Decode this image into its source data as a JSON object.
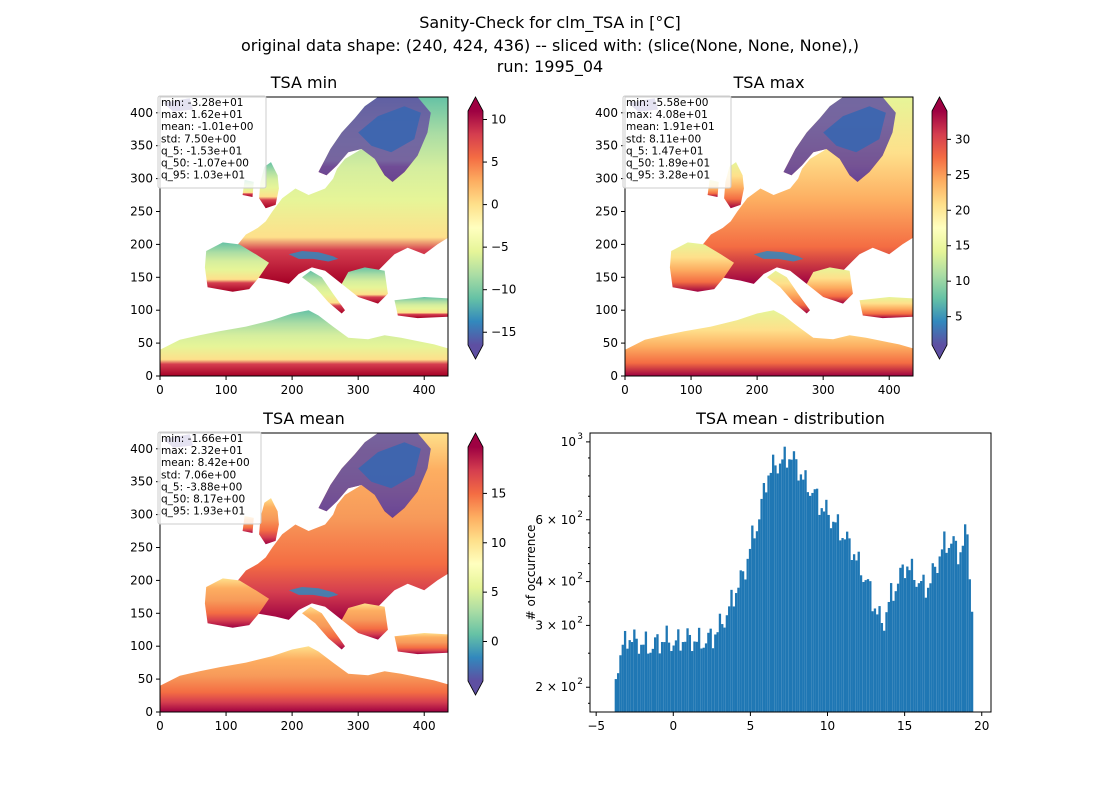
{
  "figure": {
    "title_line1": "Sanity-Check for clm_TSA in [°C]",
    "title_line2": "original data shape: (240, 424, 436) -- sliced with: (slice(None, None, None),)",
    "title_line3": "run: 1995_04"
  },
  "colors": {
    "hist_bar": "#1f77b4",
    "ocean": "#ffffff"
  },
  "chart_data": [
    {
      "type": "heatmap",
      "title": "TSA min",
      "colormap": "Spectral_r",
      "xlim": [
        0,
        436
      ],
      "ylim": [
        0,
        424
      ],
      "xticks": [
        0,
        100,
        200,
        300,
        400
      ],
      "yticks": [
        0,
        50,
        100,
        150,
        200,
        250,
        300,
        350,
        400
      ],
      "colorbar": {
        "range": [
          -16.5,
          11
        ],
        "ticks": [
          10,
          5,
          0,
          -5,
          -10,
          -15
        ],
        "tick_labels": [
          "10",
          "5",
          "0",
          "−5",
          "−10",
          "−15"
        ]
      },
      "stats": [
        "min: -3.28e+01",
        "max: 1.62e+01",
        "mean: -1.01e+00",
        "std: 7.50e+00",
        "q_5: -1.53e+01",
        "q_50: -1.07e+00",
        "q_95: 1.03e+01"
      ]
    },
    {
      "type": "heatmap",
      "title": "TSA max",
      "colormap": "Spectral_r",
      "xlim": [
        0,
        436
      ],
      "ylim": [
        0,
        424
      ],
      "xticks": [
        0,
        100,
        200,
        300,
        400
      ],
      "yticks": [
        0,
        50,
        100,
        150,
        200,
        250,
        300,
        350,
        400
      ],
      "colorbar": {
        "range": [
          1,
          34
        ],
        "ticks": [
          30,
          25,
          20,
          15,
          10,
          5
        ],
        "tick_labels": [
          "30",
          "25",
          "20",
          "15",
          "10",
          "5"
        ]
      },
      "stats": [
        "min: -5.58e+00",
        "max: 4.08e+01",
        "mean: 1.91e+01",
        "std: 8.11e+00",
        "q_5: 1.47e+01",
        "q_50: 1.89e+01",
        "q_95: 3.28e+01"
      ]
    },
    {
      "type": "heatmap",
      "title": "TSA mean",
      "colormap": "Spectral_r",
      "xlim": [
        0,
        436
      ],
      "ylim": [
        0,
        424
      ],
      "xticks": [
        0,
        100,
        200,
        300,
        400
      ],
      "yticks": [
        0,
        50,
        100,
        150,
        200,
        250,
        300,
        350,
        400
      ],
      "colorbar": {
        "range": [
          -4,
          19.7
        ],
        "ticks": [
          15,
          10,
          5,
          0
        ],
        "tick_labels": [
          "15",
          "10",
          "5",
          "0"
        ]
      },
      "stats": [
        "min: -1.66e+01",
        "max: 2.32e+01",
        "mean: 8.42e+00",
        "std: 7.06e+00",
        "q_5: -3.88e+00",
        "q_50: 8.17e+00",
        "q_95: 1.93e+01"
      ]
    },
    {
      "type": "bar",
      "title": "TSA mean - distribution",
      "ylabel": "# of occurrence",
      "yscale": "log",
      "xlim": [
        -5.4,
        20.6
      ],
      "ylim": [
        170,
        1060
      ],
      "xticks": [
        -5,
        0,
        5,
        10,
        15,
        20
      ],
      "xtick_labels": [
        "−5",
        "0",
        "5",
        "10",
        "15",
        "20"
      ],
      "yticks": [
        200,
        300,
        400,
        600,
        1000
      ],
      "ytick_labels": [
        [
          "2 × 10",
          "2"
        ],
        [
          "3 × 10",
          "2"
        ],
        [
          "4 × 10",
          "2"
        ],
        [
          "6 × 10",
          "2"
        ],
        [
          "10",
          "3"
        ]
      ],
      "bin_width": 0.15,
      "x": [
        -3.8,
        -3.5,
        -3,
        -2.5,
        -2,
        -1.5,
        -1,
        -0.5,
        0,
        0.5,
        1,
        1.5,
        2,
        2.5,
        3,
        3.5,
        4,
        4.5,
        5,
        5.5,
        6,
        6.5,
        7,
        7.5,
        8,
        8.5,
        9,
        9.5,
        10,
        10.5,
        11,
        11.5,
        12,
        12.5,
        13,
        13.5,
        14,
        14.5,
        15,
        15.5,
        16,
        16.5,
        17,
        17.5,
        18,
        18.5,
        19,
        19.3
      ],
      "y": [
        215,
        250,
        280,
        270,
        265,
        260,
        270,
        275,
        265,
        275,
        275,
        270,
        270,
        280,
        300,
        330,
        380,
        420,
        520,
        610,
        800,
        860,
        880,
        920,
        850,
        760,
        720,
        660,
        620,
        580,
        540,
        500,
        440,
        400,
        340,
        300,
        360,
        400,
        450,
        420,
        390,
        390,
        450,
        510,
        520,
        480,
        560,
        330
      ]
    }
  ]
}
